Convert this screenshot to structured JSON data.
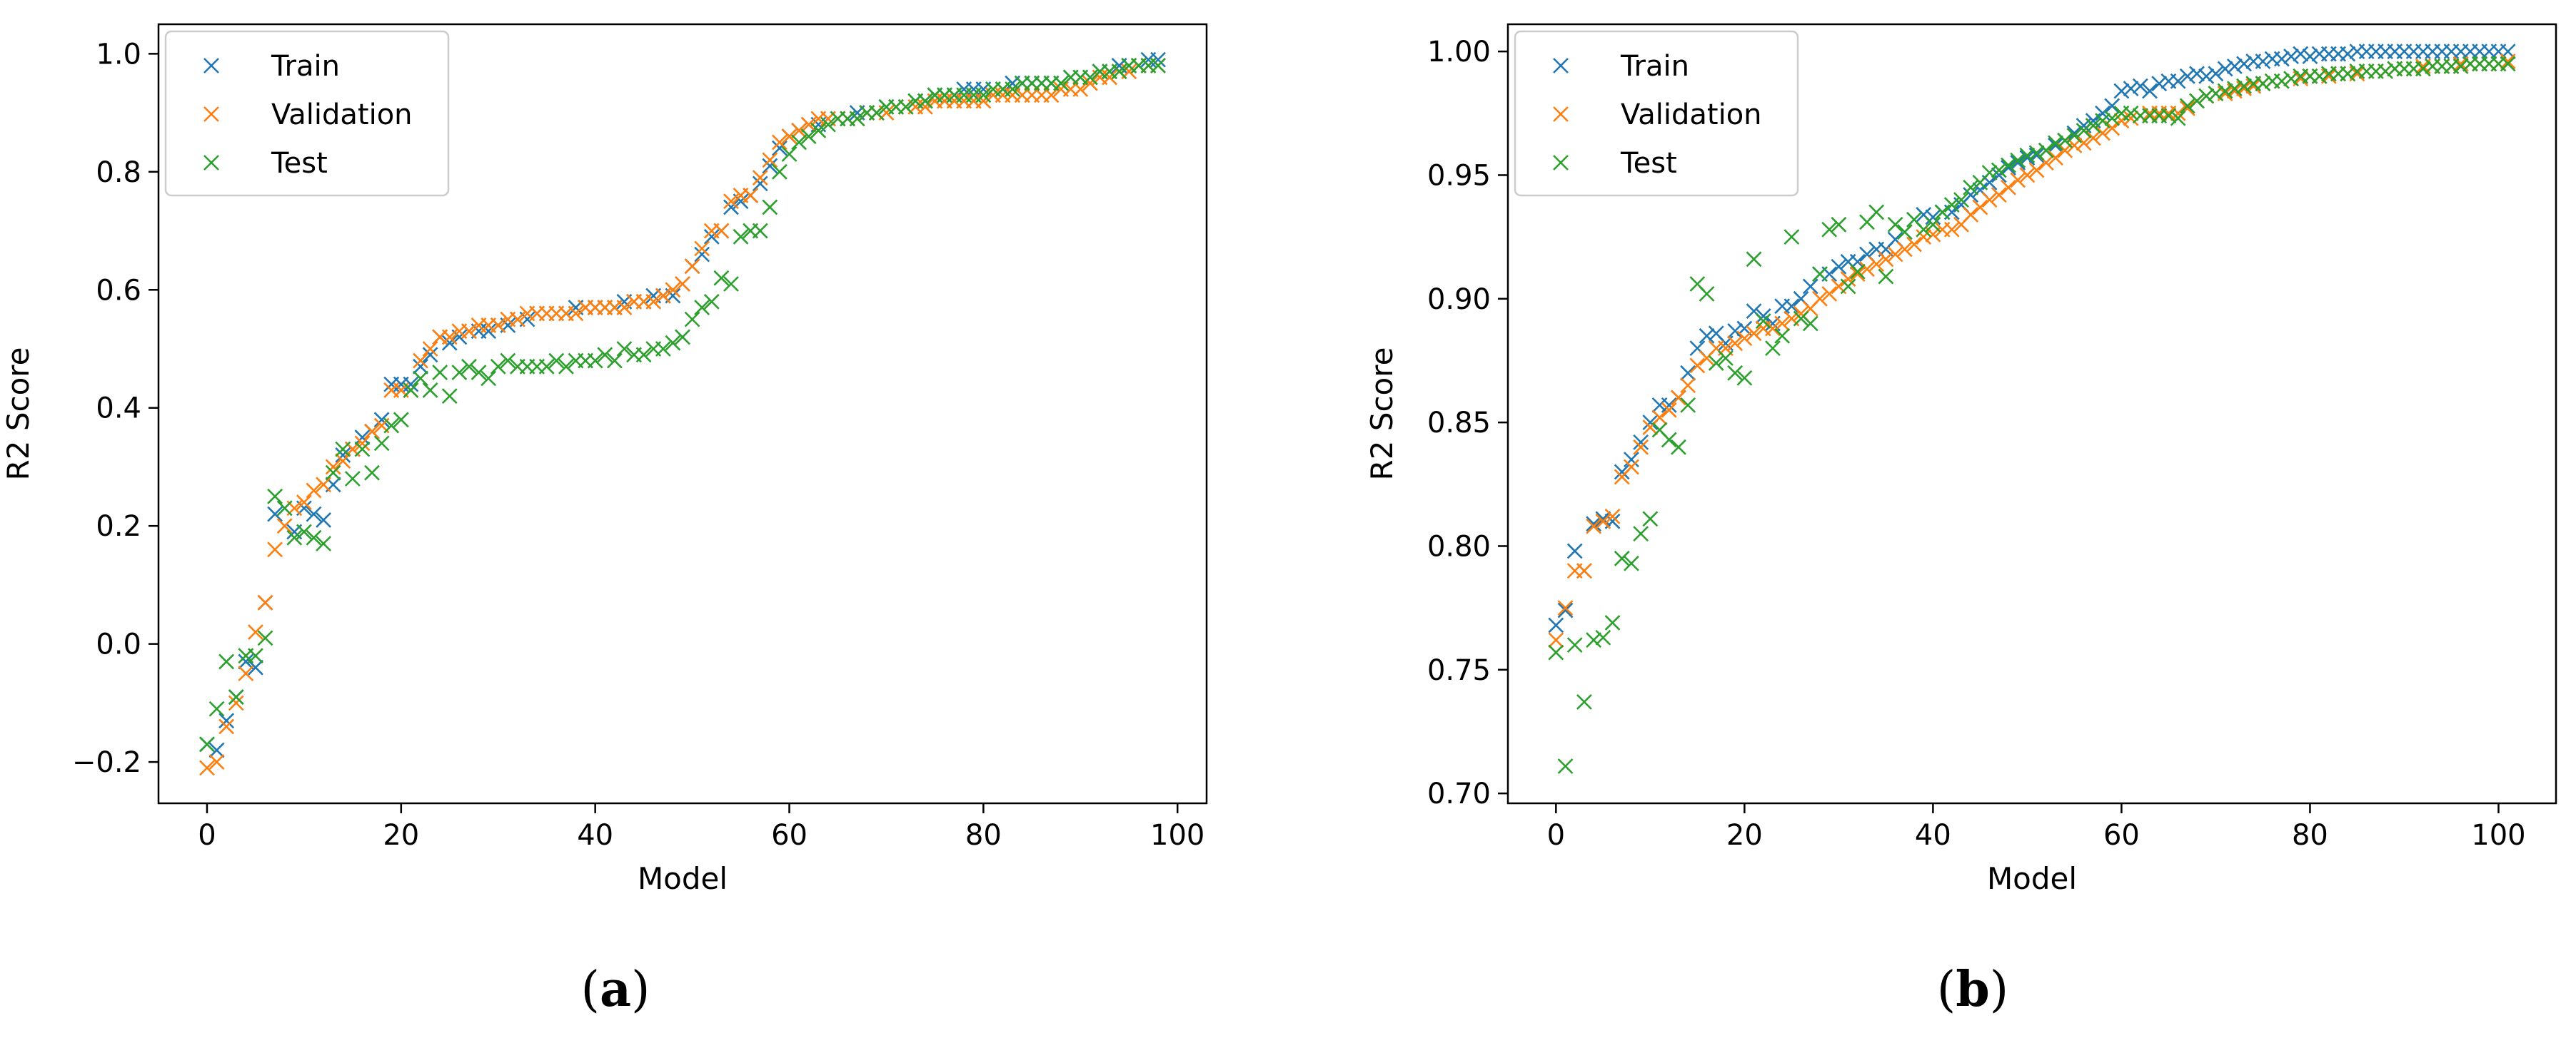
{
  "colors": {
    "train": "#1f77b4",
    "validation": "#ff7f0e",
    "test": "#2ca02c"
  },
  "panels": [
    {
      "label_open": "(",
      "label_letter": "a",
      "label_close": ")",
      "chart_data": {
        "type": "scatter",
        "title": "",
        "xlabel": "Model",
        "ylabel": "R2 Score",
        "xlim": [
          -5,
          103
        ],
        "ylim": [
          -0.27,
          1.05
        ],
        "xticks": [
          0,
          20,
          40,
          60,
          80,
          100
        ],
        "xtick_labels": [
          "0",
          "20",
          "40",
          "60",
          "80",
          "100"
        ],
        "yticks": [
          -0.2,
          0.0,
          0.2,
          0.4,
          0.6,
          0.8,
          1.0
        ],
        "ytick_labels": [
          "−0.2",
          "0.0",
          "0.2",
          "0.4",
          "0.6",
          "0.8",
          "1.0"
        ],
        "legend": "top-left",
        "marker": "x",
        "series": [
          {
            "name": "Train",
            "key": "train",
            "values": [
              -0.17,
              -0.18,
              -0.13,
              -0.09,
              -0.03,
              -0.04,
              0.07,
              0.22,
              0.23,
              0.19,
              0.23,
              0.22,
              0.21,
              0.27,
              0.32,
              0.33,
              0.35,
              0.36,
              0.38,
              0.44,
              0.44,
              0.44,
              0.47,
              0.49,
              0.52,
              0.51,
              0.52,
              0.53,
              0.53,
              0.53,
              0.54,
              0.54,
              0.55,
              0.55,
              0.56,
              0.56,
              0.56,
              0.56,
              0.57,
              0.57,
              0.57,
              0.57,
              0.57,
              0.58,
              0.58,
              0.58,
              0.59,
              0.59,
              0.59,
              0.61,
              0.64,
              0.66,
              0.69,
              0.7,
              0.74,
              0.75,
              0.76,
              0.78,
              0.81,
              0.84,
              0.86,
              0.87,
              0.88,
              0.88,
              0.89,
              0.89,
              0.89,
              0.9,
              0.9,
              0.9,
              0.91,
              0.91,
              0.91,
              0.92,
              0.92,
              0.93,
              0.93,
              0.93,
              0.94,
              0.94,
              0.94,
              0.94,
              0.94,
              0.95,
              0.95,
              0.95,
              0.95,
              0.95,
              0.95,
              0.96,
              0.96,
              0.96,
              0.97,
              0.97,
              0.98,
              0.98,
              0.98,
              0.99,
              0.99
            ]
          },
          {
            "name": "Validation",
            "key": "validation",
            "values": [
              -0.21,
              -0.2,
              -0.14,
              -0.1,
              -0.05,
              0.02,
              0.07,
              0.16,
              0.2,
              0.23,
              0.24,
              0.26,
              0.27,
              0.3,
              0.31,
              0.33,
              0.34,
              0.36,
              0.37,
              0.43,
              0.43,
              0.43,
              0.48,
              0.5,
              0.52,
              0.52,
              0.53,
              0.53,
              0.54,
              0.54,
              0.54,
              0.55,
              0.55,
              0.56,
              0.56,
              0.56,
              0.56,
              0.56,
              0.56,
              0.57,
              0.57,
              0.57,
              0.57,
              0.57,
              0.58,
              0.58,
              0.58,
              0.59,
              0.6,
              0.61,
              0.64,
              0.67,
              0.7,
              0.7,
              0.75,
              0.76,
              0.76,
              0.79,
              0.82,
              0.85,
              0.86,
              0.87,
              0.88,
              0.89,
              0.89,
              0.89,
              0.89,
              0.89,
              0.9,
              0.9,
              0.9,
              0.91,
              0.91,
              0.91,
              0.91,
              0.92,
              0.92,
              0.92,
              0.92,
              0.92,
              0.92,
              0.93,
              0.93,
              0.93,
              0.93,
              0.93,
              0.93,
              0.93,
              0.94,
              0.94,
              0.94,
              0.95,
              0.96,
              0.96,
              0.97,
              0.97,
              0.98,
              0.98,
              0.98
            ]
          },
          {
            "name": "Test",
            "key": "test",
            "values": [
              -0.17,
              -0.11,
              -0.03,
              -0.09,
              -0.02,
              -0.02,
              0.01,
              0.25,
              0.23,
              0.18,
              0.19,
              0.18,
              0.17,
              0.29,
              0.33,
              0.28,
              0.33,
              0.29,
              0.34,
              0.37,
              0.38,
              0.43,
              0.45,
              0.43,
              0.46,
              0.42,
              0.46,
              0.47,
              0.46,
              0.45,
              0.47,
              0.48,
              0.47,
              0.47,
              0.47,
              0.47,
              0.48,
              0.47,
              0.48,
              0.48,
              0.48,
              0.49,
              0.48,
              0.5,
              0.49,
              0.49,
              0.5,
              0.5,
              0.51,
              0.52,
              0.55,
              0.57,
              0.58,
              0.62,
              0.61,
              0.69,
              0.7,
              0.7,
              0.74,
              0.8,
              0.83,
              0.85,
              0.86,
              0.87,
              0.88,
              0.89,
              0.89,
              0.89,
              0.9,
              0.9,
              0.91,
              0.91,
              0.91,
              0.92,
              0.92,
              0.93,
              0.93,
              0.93,
              0.93,
              0.93,
              0.93,
              0.94,
              0.94,
              0.94,
              0.95,
              0.95,
              0.95,
              0.95,
              0.95,
              0.96,
              0.96,
              0.96,
              0.97,
              0.97,
              0.97,
              0.98,
              0.98,
              0.98,
              0.98
            ]
          }
        ]
      }
    },
    {
      "label_open": "(",
      "label_letter": "b",
      "label_close": ")",
      "chart_data": {
        "type": "scatter",
        "title": "",
        "xlabel": "Model",
        "ylabel": "R2 Score",
        "xlim": [
          -5.1,
          106.1
        ],
        "ylim": [
          0.696,
          1.011
        ],
        "xticks": [
          0,
          20,
          40,
          60,
          80,
          100
        ],
        "xtick_labels": [
          "0",
          "20",
          "40",
          "60",
          "80",
          "100"
        ],
        "yticks": [
          0.7,
          0.75,
          0.8,
          0.85,
          0.9,
          0.95,
          1.0
        ],
        "ytick_labels": [
          "0.70",
          "0.75",
          "0.80",
          "0.85",
          "0.90",
          "0.95",
          "1.00"
        ],
        "legend": "top-left",
        "marker": "x",
        "series": [
          {
            "name": "Train",
            "key": "train",
            "values": [
              0.768,
              0.774,
              0.798,
              0.79,
              0.809,
              0.811,
              0.81,
              0.83,
              0.835,
              0.842,
              0.85,
              0.857,
              0.857,
              0.86,
              0.87,
              0.88,
              0.885,
              0.886,
              0.882,
              0.887,
              0.888,
              0.895,
              0.893,
              0.89,
              0.897,
              0.897,
              0.9,
              0.905,
              0.91,
              0.91,
              0.913,
              0.915,
              0.915,
              0.918,
              0.92,
              0.92,
              0.924,
              0.927,
              0.932,
              0.934,
              0.933,
              0.935,
              0.935,
              0.938,
              0.942,
              0.944,
              0.947,
              0.95,
              0.953,
              0.955,
              0.957,
              0.958,
              0.96,
              0.962,
              0.964,
              0.967,
              0.97,
              0.972,
              0.975,
              0.978,
              0.984,
              0.985,
              0.986,
              0.984,
              0.987,
              0.988,
              0.988,
              0.99,
              0.991,
              0.99,
              0.991,
              0.993,
              0.994,
              0.995,
              0.996,
              0.996,
              0.997,
              0.997,
              0.998,
              0.999,
              0.998,
              0.999,
              0.999,
              0.999,
              0.999,
              1.0,
              1.0,
              1.0,
              1.0,
              1.0,
              1.0,
              1.0,
              1.0,
              1.0,
              1.0,
              1.0,
              1.0,
              1.0,
              1.0,
              1.0,
              1.0,
              1.0
            ]
          },
          {
            "name": "Validation",
            "key": "validation",
            "values": [
              0.762,
              0.775,
              0.79,
              0.79,
              0.808,
              0.81,
              0.812,
              0.828,
              0.832,
              0.84,
              0.848,
              0.852,
              0.855,
              0.86,
              0.865,
              0.873,
              0.876,
              0.88,
              0.88,
              0.882,
              0.884,
              0.886,
              0.888,
              0.888,
              0.89,
              0.892,
              0.894,
              0.896,
              0.9,
              0.902,
              0.905,
              0.908,
              0.91,
              0.912,
              0.914,
              0.916,
              0.918,
              0.92,
              0.922,
              0.925,
              0.926,
              0.928,
              0.928,
              0.93,
              0.934,
              0.937,
              0.94,
              0.942,
              0.945,
              0.948,
              0.95,
              0.952,
              0.955,
              0.957,
              0.96,
              0.962,
              0.963,
              0.965,
              0.967,
              0.969,
              0.972,
              0.973,
              0.974,
              0.975,
              0.975,
              0.975,
              0.975,
              0.977,
              0.98,
              0.982,
              0.983,
              0.983,
              0.984,
              0.985,
              0.986,
              0.987,
              0.988,
              0.988,
              0.989,
              0.989,
              0.99,
              0.99,
              0.99,
              0.991,
              0.991,
              0.991,
              0.992,
              0.992,
              0.992,
              0.993,
              0.993,
              0.993,
              0.994,
              0.994,
              0.994,
              0.994,
              0.995,
              0.995,
              0.995,
              0.995,
              0.995,
              0.996
            ]
          },
          {
            "name": "Test",
            "key": "test",
            "values": [
              0.757,
              0.711,
              0.76,
              0.737,
              0.762,
              0.763,
              0.769,
              0.795,
              0.793,
              0.805,
              0.811,
              0.847,
              0.843,
              0.84,
              0.857,
              0.906,
              0.902,
              0.874,
              0.876,
              0.87,
              0.868,
              0.916,
              0.891,
              0.88,
              0.885,
              0.925,
              0.892,
              0.89,
              0.91,
              0.928,
              0.93,
              0.905,
              0.911,
              0.931,
              0.935,
              0.909,
              0.93,
              0.927,
              0.932,
              0.928,
              0.93,
              0.935,
              0.938,
              0.94,
              0.945,
              0.947,
              0.951,
              0.952,
              0.954,
              0.956,
              0.958,
              0.959,
              0.96,
              0.963,
              0.964,
              0.966,
              0.968,
              0.97,
              0.972,
              0.973,
              0.975,
              0.975,
              0.974,
              0.974,
              0.974,
              0.974,
              0.973,
              0.978,
              0.98,
              0.982,
              0.983,
              0.984,
              0.985,
              0.986,
              0.987,
              0.987,
              0.988,
              0.988,
              0.989,
              0.99,
              0.99,
              0.99,
              0.991,
              0.991,
              0.991,
              0.992,
              0.992,
              0.992,
              0.992,
              0.993,
              0.993,
              0.993,
              0.993,
              0.994,
              0.994,
              0.994,
              0.994,
              0.995,
              0.995,
              0.995,
              0.995,
              0.995
            ]
          }
        ]
      }
    }
  ]
}
